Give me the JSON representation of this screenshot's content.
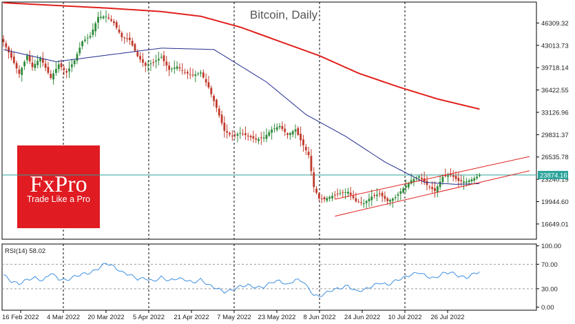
{
  "chart_data": [
    {
      "type": "candlestick",
      "title": "Bitcoin, Daily",
      "x_labels": [
        "16 Feb 2022",
        "4 Mar 2022",
        "20 Mar 2022",
        "5 Apr 2022",
        "21 Apr 2022",
        "7 May 2022",
        "23 May 2022",
        "8 Jun 2022",
        "24 Jun 2022",
        "10 Jul 2022",
        "26 Jul 2022"
      ],
      "y_ticks": [
        46309.32,
        43013.73,
        39718.14,
        36422.55,
        33126.96,
        29831.37,
        26535.78,
        23240.19,
        19944.6,
        16649.01
      ],
      "ylim": [
        14400,
        49400
      ],
      "current_price": 23874.16,
      "price_anchors": [
        [
          0,
          43500
        ],
        [
          3,
          41200
        ],
        [
          6,
          38800
        ],
        [
          9,
          41500
        ],
        [
          11,
          39800
        ],
        [
          14,
          41200
        ],
        [
          18,
          38200
        ],
        [
          21,
          40200
        ],
        [
          24,
          39000
        ],
        [
          27,
          40800
        ],
        [
          30,
          43600
        ],
        [
          33,
          44400
        ],
        [
          36,
          47200
        ],
        [
          39,
          47300
        ],
        [
          42,
          46300
        ],
        [
          45,
          44200
        ],
        [
          48,
          43800
        ],
        [
          51,
          41400
        ],
        [
          54,
          40000
        ],
        [
          57,
          40500
        ],
        [
          60,
          41300
        ],
        [
          63,
          39400
        ],
        [
          66,
          39900
        ],
        [
          69,
          39000
        ],
        [
          72,
          38600
        ],
        [
          75,
          39000
        ],
        [
          78,
          36800
        ],
        [
          81,
          33800
        ],
        [
          84,
          30400
        ],
        [
          87,
          29600
        ],
        [
          90,
          30100
        ],
        [
          93,
          29600
        ],
        [
          96,
          29100
        ],
        [
          99,
          29400
        ],
        [
          102,
          30600
        ],
        [
          105,
          31100
        ],
        [
          108,
          29800
        ],
        [
          111,
          30600
        ],
        [
          113,
          29000
        ],
        [
          116,
          26800
        ],
        [
          118,
          22100
        ],
        [
          120,
          20400
        ],
        [
          122,
          20300
        ],
        [
          125,
          20800
        ],
        [
          128,
          21200
        ],
        [
          131,
          21400
        ],
        [
          134,
          20000
        ],
        [
          137,
          19700
        ],
        [
          140,
          20700
        ],
        [
          143,
          21100
        ],
        [
          146,
          20000
        ],
        [
          149,
          20600
        ],
        [
          152,
          21900
        ],
        [
          155,
          23100
        ],
        [
          158,
          23700
        ],
        [
          161,
          22400
        ],
        [
          164,
          21500
        ],
        [
          167,
          23600
        ],
        [
          170,
          23900
        ],
        [
          173,
          23000
        ],
        [
          176,
          22900
        ],
        [
          179,
          23400
        ],
        [
          181,
          23874
        ]
      ],
      "ma_blue": [
        [
          0,
          42400
        ],
        [
          20,
          40600
        ],
        [
          40,
          41600
        ],
        [
          60,
          42600
        ],
        [
          80,
          42400
        ],
        [
          100,
          37600
        ],
        [
          115,
          32800
        ],
        [
          130,
          29600
        ],
        [
          145,
          25800
        ],
        [
          160,
          22800
        ],
        [
          172,
          22500
        ],
        [
          181,
          22600
        ]
      ],
      "ma_red": [
        [
          0,
          49300
        ],
        [
          20,
          48900
        ],
        [
          40,
          48500
        ],
        [
          60,
          48000
        ],
        [
          75,
          47300
        ],
        [
          90,
          45700
        ],
        [
          105,
          43600
        ],
        [
          120,
          41500
        ],
        [
          135,
          38900
        ],
        [
          150,
          36900
        ],
        [
          165,
          35100
        ],
        [
          181,
          33600
        ]
      ],
      "channel": {
        "lower": [
          [
            126,
            17800
          ],
          [
            181,
            22700
          ],
          [
            200,
            24500
          ]
        ],
        "upper": [
          [
            126,
            20300
          ],
          [
            181,
            24400
          ],
          [
            200,
            26600
          ]
        ]
      }
    },
    {
      "type": "line",
      "title": "RSI(14) 58.02",
      "y_ticks": [
        100.0,
        70.0,
        30.0,
        0.0
      ],
      "ylim": [
        -5,
        103
      ],
      "anchors": [
        [
          0,
          53
        ],
        [
          3,
          42
        ],
        [
          6,
          38
        ],
        [
          9,
          45
        ],
        [
          12,
          48
        ],
        [
          15,
          43
        ],
        [
          18,
          56
        ],
        [
          21,
          46
        ],
        [
          24,
          44
        ],
        [
          27,
          50
        ],
        [
          30,
          54
        ],
        [
          33,
          56
        ],
        [
          36,
          63
        ],
        [
          39,
          72
        ],
        [
          42,
          66
        ],
        [
          45,
          57
        ],
        [
          48,
          53
        ],
        [
          51,
          46
        ],
        [
          54,
          47
        ],
        [
          57,
          42
        ],
        [
          60,
          49
        ],
        [
          63,
          43
        ],
        [
          66,
          47
        ],
        [
          69,
          45
        ],
        [
          72,
          40
        ],
        [
          75,
          45
        ],
        [
          78,
          36
        ],
        [
          81,
          31
        ],
        [
          84,
          25
        ],
        [
          87,
          28
        ],
        [
          90,
          34
        ],
        [
          93,
          36
        ],
        [
          96,
          32
        ],
        [
          99,
          33
        ],
        [
          102,
          41
        ],
        [
          105,
          43
        ],
        [
          108,
          36
        ],
        [
          111,
          45
        ],
        [
          114,
          42
        ],
        [
          116,
          30
        ],
        [
          118,
          20
        ],
        [
          120,
          17
        ],
        [
          122,
          22
        ],
        [
          125,
          28
        ],
        [
          128,
          31
        ],
        [
          131,
          35
        ],
        [
          134,
          26
        ],
        [
          137,
          28
        ],
        [
          140,
          34
        ],
        [
          143,
          40
        ],
        [
          146,
          36
        ],
        [
          149,
          43
        ],
        [
          152,
          48
        ],
        [
          155,
          53
        ],
        [
          158,
          57
        ],
        [
          161,
          50
        ],
        [
          164,
          47
        ],
        [
          167,
          55
        ],
        [
          170,
          57
        ],
        [
          173,
          51
        ],
        [
          176,
          48
        ],
        [
          179,
          55
        ],
        [
          181,
          58
        ]
      ]
    }
  ],
  "logo": {
    "brand": "FxPro",
    "tagline": "Trade Like a Pro"
  },
  "colors": {
    "bull": "#2e8b3a",
    "bear": "#c0392b",
    "ma_blue": "#1f2a8c",
    "ma_red": "#e0201b",
    "rsi": "#3d8fe0",
    "price_line": "#2aa39a",
    "logo_bg": "#e01b22"
  }
}
